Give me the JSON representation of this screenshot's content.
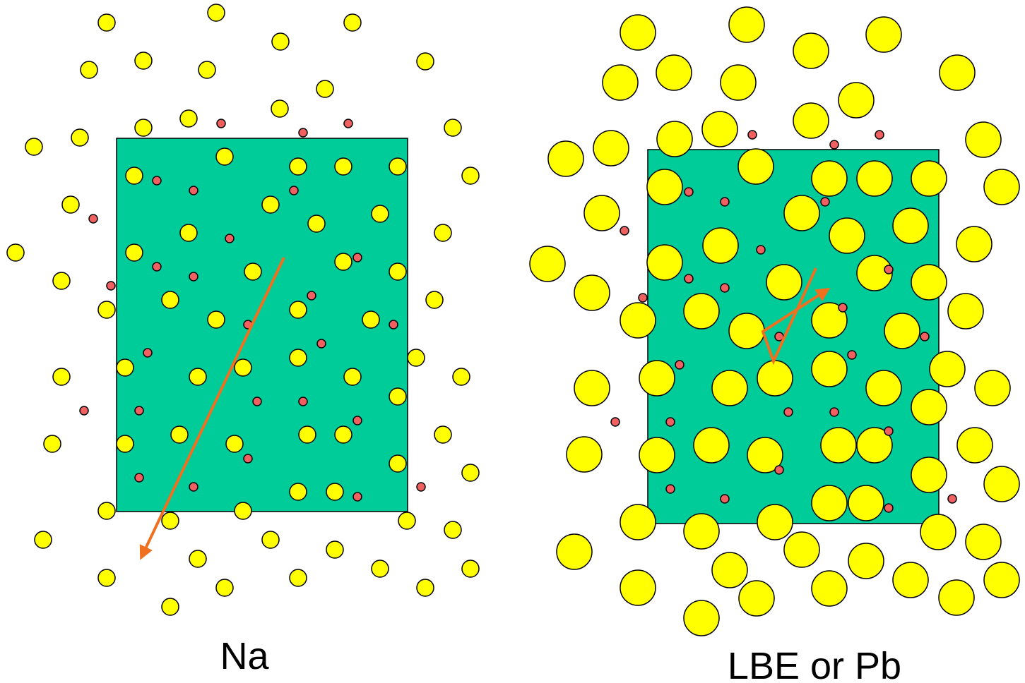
{
  "panels": [
    {
      "label": "Na"
    },
    {
      "label": "LBE or Pb"
    }
  ]
}
